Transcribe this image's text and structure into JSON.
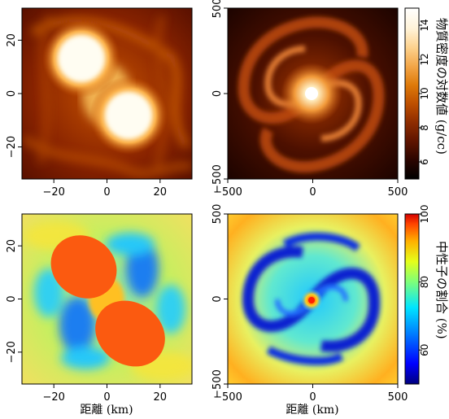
{
  "chart_data": [
    {
      "type": "heatmap",
      "panel": "top-left",
      "quantity": "density",
      "xlim": [
        -32,
        32
      ],
      "ylim": [
        -32,
        32
      ],
      "xticks": [
        -20,
        0,
        20
      ],
      "yticks": [
        -20,
        0,
        20
      ],
      "xtick_labels": [
        "−20",
        "0",
        "20"
      ],
      "ytick_labels": [
        "−20",
        "0",
        "20"
      ],
      "show_xtick_labels": true,
      "show_ytick_labels": true,
      "xlabel": "",
      "ylabel": "",
      "features": {
        "blobs": [
          [
            -9,
            9
          ],
          [
            9,
            -9
          ]
        ]
      }
    },
    {
      "type": "heatmap",
      "panel": "top-right",
      "quantity": "density",
      "xlim": [
        -500,
        500
      ],
      "ylim": [
        -500,
        500
      ],
      "xticks": [
        -500,
        0,
        500
      ],
      "yticks": [
        -500,
        0,
        500
      ],
      "xtick_labels": [
        "−500",
        "0",
        "500"
      ],
      "ytick_labels": [
        "−500",
        "0",
        "500"
      ],
      "show_xtick_labels": true,
      "show_ytick_labels": true,
      "xlabel": "",
      "ylabel": "",
      "colorbar": {
        "label": "物質密度の対数値 (g/cc)",
        "range": [
          5,
          15
        ],
        "ticks": [
          6,
          8,
          10,
          12,
          14
        ],
        "colormap": [
          "#000000",
          "#2a0500",
          "#5e1400",
          "#8e2c00",
          "#bd4f00",
          "#de7a0a",
          "#f3a648",
          "#fdd28e",
          "#fff3d8",
          "#ffffff"
        ]
      }
    },
    {
      "type": "heatmap",
      "panel": "bottom-left",
      "quantity": "neutron fraction",
      "xlim": [
        -32,
        32
      ],
      "ylim": [
        -32,
        32
      ],
      "xticks": [
        -20,
        0,
        20
      ],
      "yticks": [
        -20,
        0,
        20
      ],
      "xtick_labels": [
        "−20",
        "0",
        "20"
      ],
      "ytick_labels": [
        "−20",
        "0",
        "20"
      ],
      "show_xtick_labels": true,
      "show_ytick_labels": true,
      "xlabel": "距離 (km)",
      "ylabel": "",
      "features": {
        "blobs": [
          [
            -9,
            9
          ],
          [
            9,
            -9
          ]
        ]
      }
    },
    {
      "type": "heatmap",
      "panel": "bottom-right",
      "quantity": "neutron fraction",
      "xlim": [
        -500,
        500
      ],
      "ylim": [
        -500,
        500
      ],
      "xticks": [
        -500,
        0,
        500
      ],
      "yticks": [
        -500,
        0,
        500
      ],
      "xtick_labels": [
        "−500",
        "0",
        "500"
      ],
      "ytick_labels": [
        "−500",
        "0",
        "500"
      ],
      "show_xtick_labels": true,
      "show_ytick_labels": true,
      "xlabel": "距離 (km)",
      "ylabel": "",
      "colorbar": {
        "label": "中性子の割合 (%)",
        "range": [
          50,
          100
        ],
        "ticks": [
          60,
          80,
          100
        ],
        "colormap": [
          "#00007f",
          "#0000ff",
          "#0080ff",
          "#00e5ff",
          "#7dff7a",
          "#e5ff1a",
          "#ffb000",
          "#ff4500",
          "#d50000"
        ]
      }
    }
  ]
}
